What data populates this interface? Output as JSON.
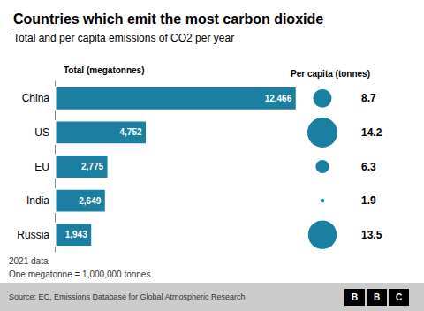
{
  "chart_data": {
    "type": "bar",
    "orientation": "horizontal",
    "title": "Countries which emit the most carbon dioxide",
    "subtitle": "Total and per capita emissions of CO2 per year",
    "categories": [
      "China",
      "US",
      "EU",
      "India",
      "Russia"
    ],
    "values": [
      12466,
      4752,
      2775,
      2649,
      1943
    ],
    "value_labels": [
      "12,466",
      "4,752",
      "2,775",
      "2,649",
      "1,943"
    ],
    "per_capita": [
      8.7,
      14.2,
      6.3,
      1.9,
      13.5
    ],
    "color": "#1a7fa0",
    "xlim": [
      0,
      13000
    ],
    "data_labels": true,
    "tick_labels": "y",
    "grid": false,
    "annotations": [
      "Total (megatonnes)",
      "Per capita (tonnes)",
      "2021 data",
      "One megatonne = 1,000,000 tonnes",
      "Source: EC, Emissions Database for Global Atmospheric Research",
      "BBC"
    ]
  }
}
